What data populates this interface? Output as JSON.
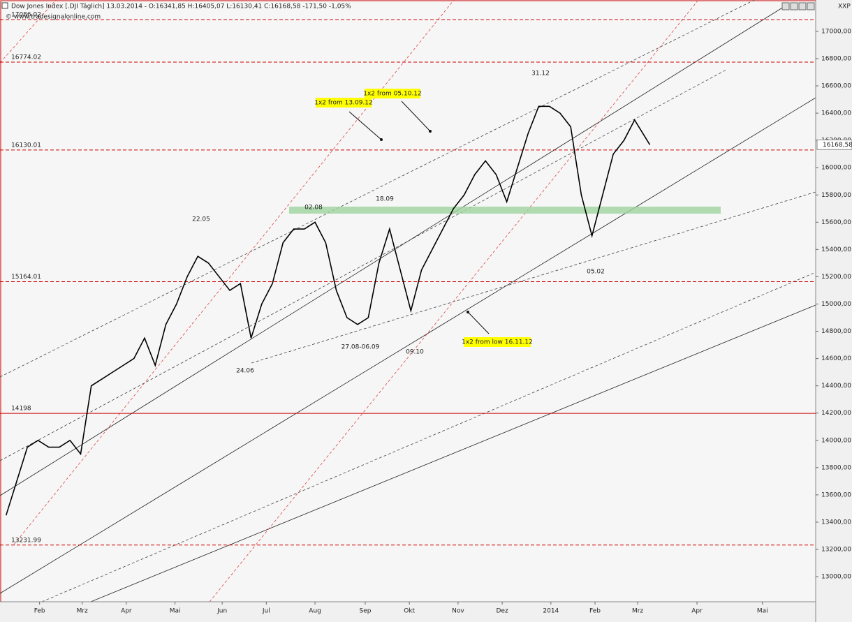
{
  "header": {
    "title": "Dow Jones Index [.DJI Täglich] 13.03.2014 - O:16341,85 H:16405,07 L:16130,41 C:16168,58 -171,50 -1,05%",
    "source": "© www.tradesignalonline.com",
    "symbol": "XXP"
  },
  "chart_data": {
    "type": "line",
    "annotations": [
      "22.05",
      "02.08",
      "18.09",
      "31.12",
      "24.06",
      "27.08-06.09",
      "09.10",
      "05.02",
      "1x2 from 13.09.12",
      "1x2 from 05.10.12",
      "1x2 from low 16.11.12"
    ],
    "levels": [
      17086.02,
      16774.02,
      16130.01,
      15164.01,
      14198,
      13231.99
    ],
    "last_price": {
      "value": 16168.58,
      "label": "16168,58"
    },
    "xlim": [
      0,
      536
    ],
    "xticks": [
      {
        "value": 26,
        "label": "Feb"
      },
      {
        "value": 54,
        "label": "Mrz"
      },
      {
        "value": 83,
        "label": "Apr"
      },
      {
        "value": 115,
        "label": "Mai"
      },
      {
        "value": 146,
        "label": "Jun"
      },
      {
        "value": 175,
        "label": "Jul"
      },
      {
        "value": 207,
        "label": "Aug"
      },
      {
        "value": 240,
        "label": "Sep"
      },
      {
        "value": 269,
        "label": "Okt"
      },
      {
        "value": 301,
        "label": "Nov"
      },
      {
        "value": 330,
        "label": "Dez"
      },
      {
        "value": 362,
        "label": "2014"
      },
      {
        "value": 391,
        "label": "Feb"
      },
      {
        "value": 419,
        "label": "Mrz"
      },
      {
        "value": 458,
        "label": "Apr"
      },
      {
        "value": 501,
        "label": "Mai"
      }
    ],
    "ylim": [
      12816,
      17230
    ],
    "yticks": [
      {
        "value": 13000,
        "label": "13000,00"
      },
      {
        "value": 13200,
        "label": "13200,00"
      },
      {
        "value": 13400,
        "label": "13400,00"
      },
      {
        "value": 13600,
        "label": "13600,00"
      },
      {
        "value": 13800,
        "label": "13800,00"
      },
      {
        "value": 14000,
        "label": "14000,00"
      },
      {
        "value": 14200,
        "label": "14200,00"
      },
      {
        "value": 14400,
        "label": "14400,00"
      },
      {
        "value": 14600,
        "label": "14600,00"
      },
      {
        "value": 14800,
        "label": "14800,00"
      },
      {
        "value": 15000,
        "label": "15000,00"
      },
      {
        "value": 15200,
        "label": "15200,00"
      },
      {
        "value": 15400,
        "label": "15400,00"
      },
      {
        "value": 15600,
        "label": "15600,00"
      },
      {
        "value": 15800,
        "label": "15800,00"
      },
      {
        "value": 16000,
        "label": "16000,00"
      },
      {
        "value": 16200,
        "label": "16200,00"
      },
      {
        "value": 16400,
        "label": "16400,00"
      },
      {
        "value": 16600,
        "label": "16600,00"
      },
      {
        "value": 16800,
        "label": "16800,00"
      },
      {
        "value": 17000,
        "label": "17000,00"
      }
    ],
    "series": [
      {
        "color": "#000000",
        "x": [
          4,
          11,
          18,
          25,
          32,
          39,
          46,
          53,
          60,
          67,
          74,
          81,
          88,
          95,
          102,
          109,
          116,
          123,
          130,
          137,
          144,
          151,
          158,
          165,
          172,
          179,
          186,
          193,
          200,
          207,
          214,
          221,
          228,
          235,
          242,
          249,
          256,
          263,
          270,
          277,
          284,
          291,
          298,
          305,
          312,
          319,
          326,
          333,
          340,
          347,
          354,
          361,
          368,
          375,
          382,
          389,
          396,
          403,
          410,
          417,
          427
        ],
        "values": [
          13450,
          13700,
          13950,
          14000,
          13950,
          13950,
          14000,
          13900,
          14400,
          14450,
          14500,
          14550,
          14600,
          14750,
          14550,
          14850,
          15000,
          15200,
          15350,
          15300,
          15200,
          15100,
          15150,
          14750,
          15000,
          15150,
          15450,
          15550,
          15550,
          15600,
          15450,
          15100,
          14900,
          14850,
          14900,
          15300,
          15550,
          15250,
          14950,
          15250,
          15400,
          15550,
          15700,
          15800,
          15950,
          16050,
          15950,
          15750,
          16000,
          16250,
          16450,
          16450,
          16400,
          16300,
          15800,
          15500,
          15800,
          16100,
          16200,
          16350,
          16168.58
        ]
      }
    ]
  }
}
